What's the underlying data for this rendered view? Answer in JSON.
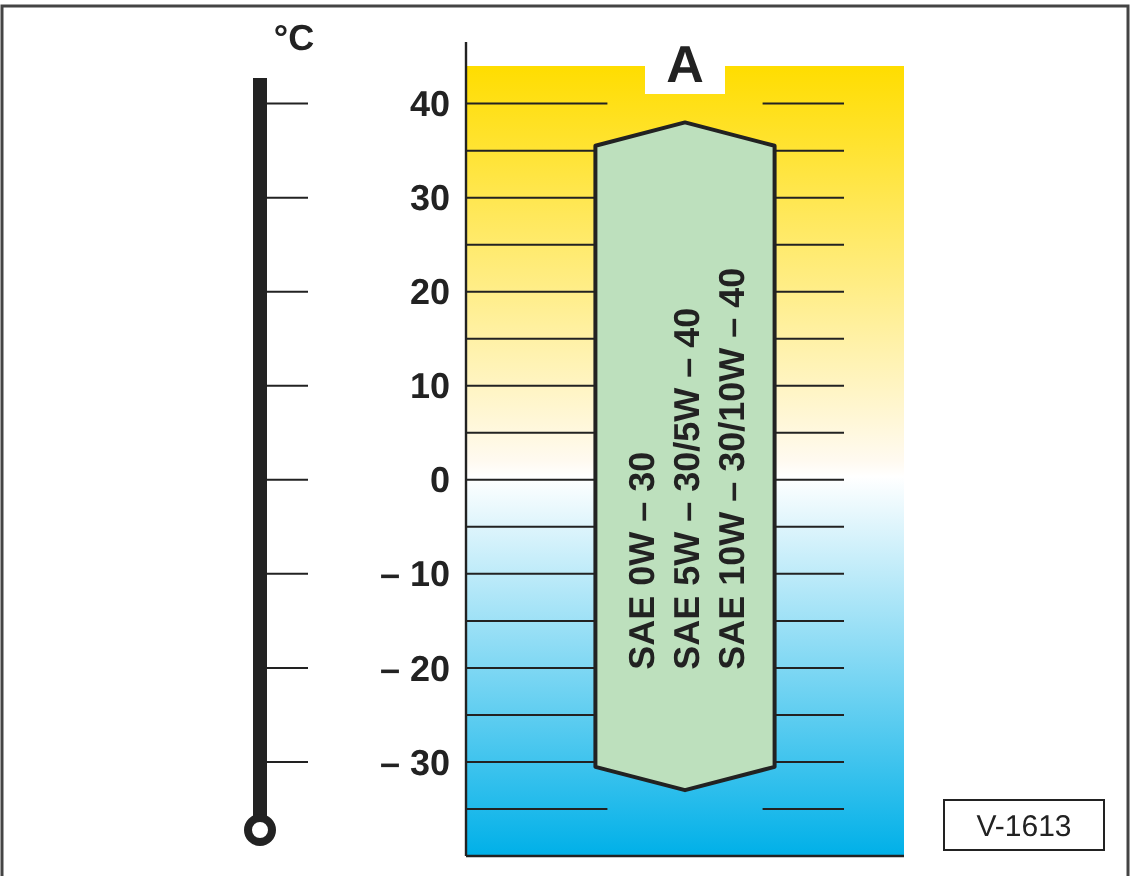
{
  "chart_data": {
    "type": "bar",
    "title": "A",
    "ylabel": "°C",
    "categories": [
      null
    ],
    "base": [
      -33
    ],
    "values": [
      71
    ],
    "color": "#bde0bd",
    "ylim": [
      -40,
      44
    ],
    "yticks": [
      {
        "value": -35,
        "label": null
      },
      {
        "value": -30,
        "label": "– 30"
      },
      {
        "value": -25,
        "label": null
      },
      {
        "value": -20,
        "label": "– 20"
      },
      {
        "value": -15,
        "label": null
      },
      {
        "value": -10,
        "label": "– 10"
      },
      {
        "value": -5,
        "label": null
      },
      0,
      {
        "value": 5,
        "label": null
      },
      10,
      {
        "value": 15,
        "label": null
      },
      20,
      {
        "value": 25,
        "label": null
      },
      30,
      {
        "value": 35,
        "label": null
      },
      40
    ],
    "grid": true,
    "annotations": [
      "SAE 0W – 30",
      "SAE 5W – 30/5W – 40",
      "SAE 10W – 30/10W – 40",
      "V-1613"
    ]
  }
}
